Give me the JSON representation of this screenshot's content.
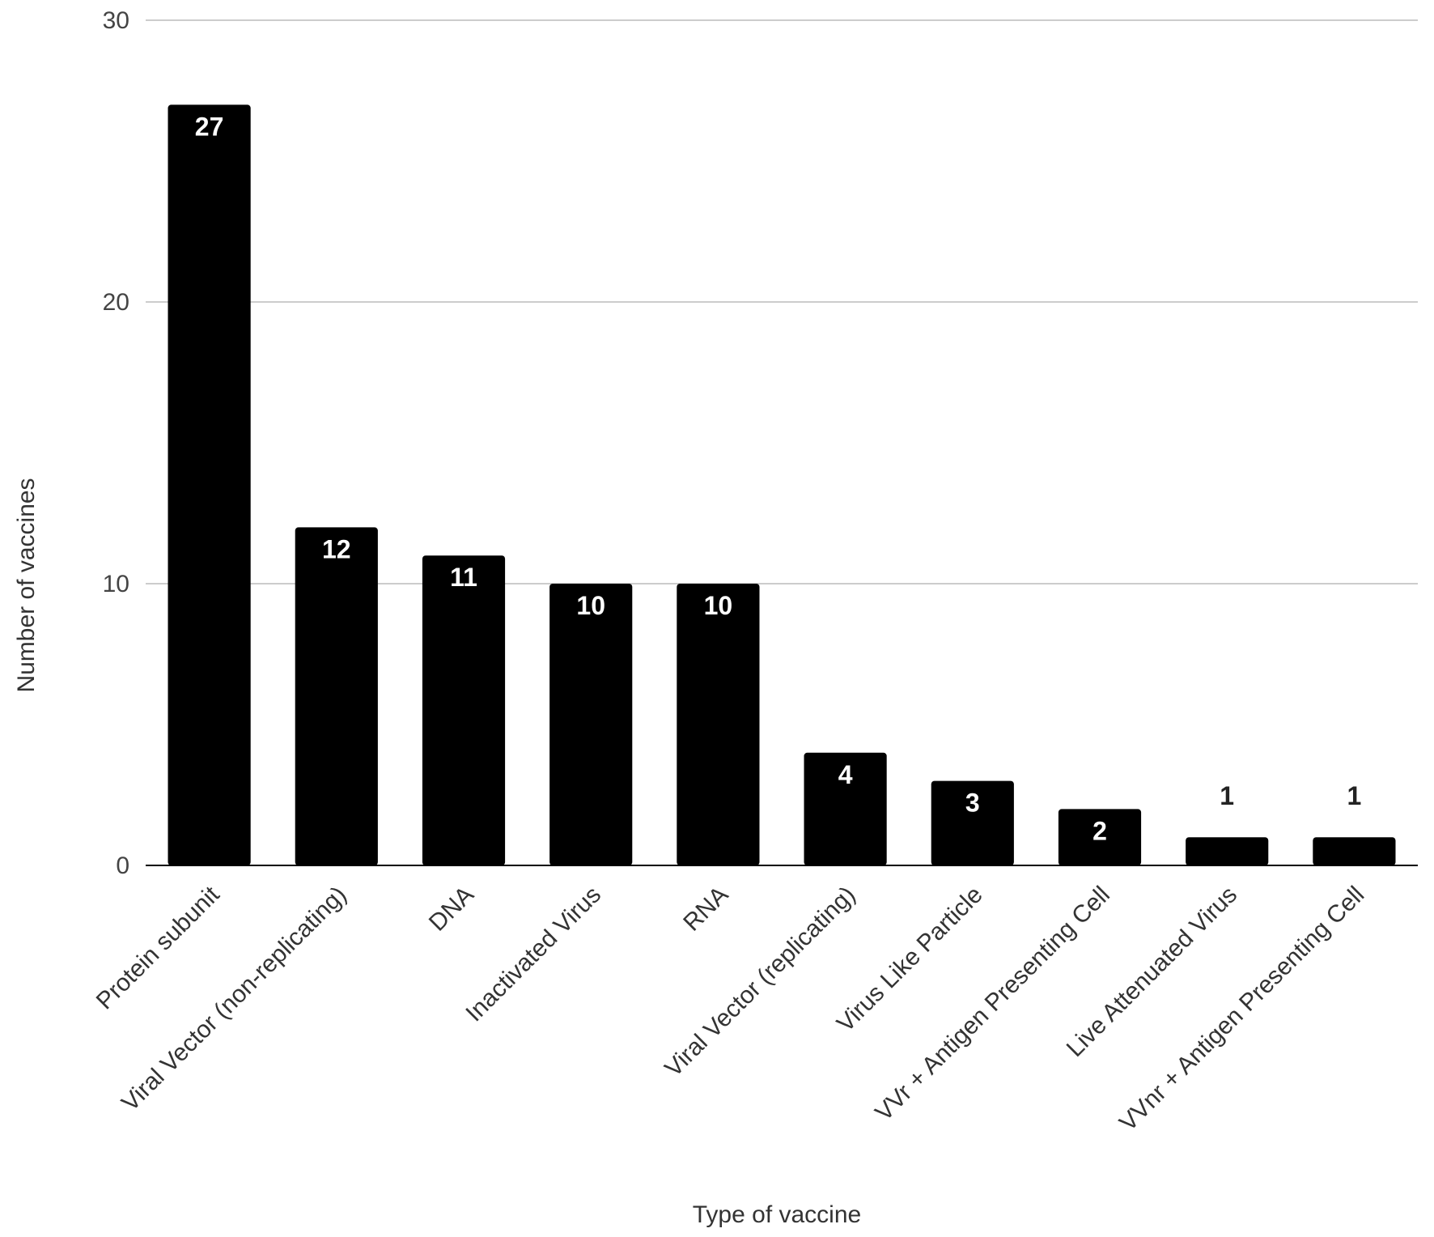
{
  "chart_data": {
    "type": "bar",
    "title": "",
    "xlabel": "Type of vaccine",
    "ylabel": "Number of vaccines",
    "ylim": [
      0,
      30
    ],
    "yticks": [
      0,
      10,
      20,
      30
    ],
    "grid": true,
    "legend": "none",
    "colors": {
      "bar": "#000000",
      "grid": "#cccccc",
      "axis": "#000000",
      "label_inside": "#ffffff",
      "label_outside": "#222222"
    },
    "categories": [
      "Protein subunit",
      "Viral Vector (non-replicating)",
      "DNA",
      "Inactivated Virus",
      "RNA",
      "Viral Vector (replicating)",
      "Virus Like Particle",
      "VVr + Antigen Presenting Cell",
      "Live Attenuated Virus",
      "VVnr + Antigen Presenting Cell"
    ],
    "values": [
      27,
      12,
      11,
      10,
      10,
      4,
      3,
      2,
      1,
      1
    ],
    "data_labels": [
      "27",
      "12",
      "11",
      "10",
      "10",
      "4",
      "3",
      "2",
      "1",
      "1"
    ]
  }
}
